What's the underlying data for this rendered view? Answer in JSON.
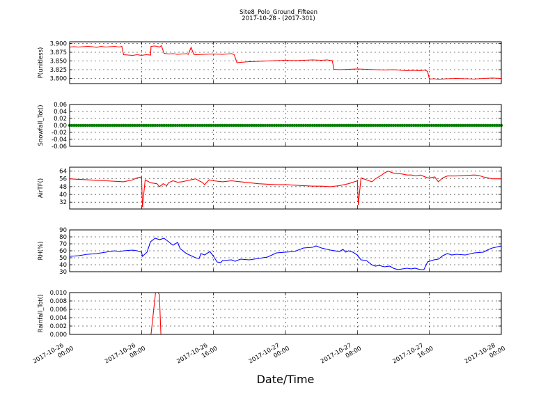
{
  "title": "Site8_Polo_Ground_Fifteen",
  "subtitle": "2017-10-28 - (2017-301)",
  "xlabel": "Date/Time",
  "x_ticks": [
    {
      "l1": "2017-10-26",
      "l2": "00:00"
    },
    {
      "l1": "2017-10-26",
      "l2": "08:00"
    },
    {
      "l1": "2017-10-26",
      "l2": "16:00"
    },
    {
      "l1": "2017-10-27",
      "l2": "00:00"
    },
    {
      "l1": "2017-10-27",
      "l2": "08:00"
    },
    {
      "l1": "2017-10-27",
      "l2": "16:00"
    },
    {
      "l1": "2017-10-28",
      "l2": "00:00"
    }
  ],
  "chart_data": [
    {
      "type": "line",
      "ylabel": "P(unitless)",
      "ylim": [
        3.785,
        3.905
      ],
      "yticks": [
        3.8,
        3.825,
        3.85,
        3.875,
        3.9
      ],
      "tick_decimals": 3,
      "color": "#ff0000",
      "grid": true,
      "x_unit": "hours since 2017-10-26 00:00",
      "xlim": [
        0,
        48
      ],
      "points": [
        [
          0,
          3.89
        ],
        [
          0.5,
          3.891
        ],
        [
          1,
          3.89
        ],
        [
          1.5,
          3.891
        ],
        [
          2,
          3.892
        ],
        [
          2.5,
          3.891
        ],
        [
          3,
          3.889
        ],
        [
          3.5,
          3.892
        ],
        [
          4,
          3.89
        ],
        [
          4.5,
          3.891
        ],
        [
          5,
          3.892
        ],
        [
          5.5,
          3.89
        ],
        [
          5.8,
          3.892
        ],
        [
          6,
          3.868
        ],
        [
          6.5,
          3.867
        ],
        [
          7,
          3.866
        ],
        [
          7.5,
          3.868
        ],
        [
          8,
          3.866
        ],
        [
          8.5,
          3.868
        ],
        [
          9,
          3.867
        ],
        [
          9.05,
          3.892
        ],
        [
          9.5,
          3.893
        ],
        [
          10,
          3.89
        ],
        [
          10.2,
          3.894
        ],
        [
          10.5,
          3.872
        ],
        [
          11,
          3.87
        ],
        [
          11.5,
          3.871
        ],
        [
          12,
          3.869
        ],
        [
          12.5,
          3.87
        ],
        [
          13,
          3.871
        ],
        [
          13.2,
          3.869
        ],
        [
          13.5,
          3.889
        ],
        [
          13.8,
          3.869
        ],
        [
          14,
          3.868
        ],
        [
          15,
          3.869
        ],
        [
          16,
          3.87
        ],
        [
          17,
          3.869
        ],
        [
          18,
          3.871
        ],
        [
          18.3,
          3.868
        ],
        [
          18.6,
          3.845
        ],
        [
          19,
          3.846
        ],
        [
          20,
          3.848
        ],
        [
          21,
          3.849
        ],
        [
          22,
          3.85
        ],
        [
          23,
          3.851
        ],
        [
          24,
          3.852
        ],
        [
          25,
          3.851
        ],
        [
          26,
          3.852
        ],
        [
          27,
          3.853
        ],
        [
          28,
          3.852
        ],
        [
          28.6,
          3.853
        ],
        [
          29.2,
          3.851
        ],
        [
          29.4,
          3.826
        ],
        [
          30,
          3.825
        ],
        [
          31,
          3.826
        ],
        [
          32,
          3.827
        ],
        [
          33,
          3.826
        ],
        [
          34,
          3.825
        ],
        [
          35,
          3.824
        ],
        [
          36,
          3.825
        ],
        [
          37,
          3.823
        ],
        [
          37.5,
          3.822
        ],
        [
          38,
          3.823
        ],
        [
          39,
          3.822
        ],
        [
          39.5,
          3.824
        ],
        [
          39.8,
          3.82
        ],
        [
          40,
          3.798
        ],
        [
          40.5,
          3.799
        ],
        [
          41,
          3.797
        ],
        [
          42,
          3.799
        ],
        [
          43,
          3.8
        ],
        [
          44,
          3.799
        ],
        [
          45,
          3.798
        ],
        [
          46,
          3.8
        ],
        [
          47,
          3.801
        ],
        [
          48,
          3.8
        ]
      ]
    },
    {
      "type": "scatter",
      "ylabel": "Snowfall_Tot()",
      "ylim": [
        -0.06,
        0.06
      ],
      "yticks": [
        -0.06,
        -0.04,
        -0.02,
        0.0,
        0.02,
        0.04,
        0.06
      ],
      "tick_decimals": 2,
      "color": "#008000",
      "grid": true,
      "x_unit": "hours since 2017-10-26 00:00",
      "xlim": [
        0,
        48
      ],
      "constant_value": 0.0,
      "x_step": 0.25
    },
    {
      "type": "line",
      "ylabel": "AirTF()",
      "ylim": [
        25,
        68
      ],
      "yticks": [
        32,
        40,
        48,
        56,
        64
      ],
      "tick_decimals": 0,
      "color": "#ff0000",
      "grid": true,
      "x_unit": "hours since 2017-10-26 00:00",
      "xlim": [
        0,
        48
      ],
      "points": [
        [
          0,
          56
        ],
        [
          1,
          55.5
        ],
        [
          2,
          55
        ],
        [
          3,
          54.5
        ],
        [
          4,
          54
        ],
        [
          5,
          53.5
        ],
        [
          6,
          53
        ],
        [
          7,
          55
        ],
        [
          7.5,
          57
        ],
        [
          8,
          58
        ],
        [
          8.1,
          27
        ],
        [
          8.4,
          55
        ],
        [
          9,
          52
        ],
        [
          9.7,
          51
        ],
        [
          10,
          48
        ],
        [
          10.4,
          51
        ],
        [
          10.8,
          49
        ],
        [
          11,
          52
        ],
        [
          11.5,
          54
        ],
        [
          12,
          52.5
        ],
        [
          12.5,
          53
        ],
        [
          13,
          54
        ],
        [
          13.5,
          55
        ],
        [
          14,
          56
        ],
        [
          14.4,
          54
        ],
        [
          14.8,
          52
        ],
        [
          15,
          50
        ],
        [
          15.5,
          55
        ],
        [
          16,
          54
        ],
        [
          17,
          53
        ],
        [
          18,
          54
        ],
        [
          19,
          53
        ],
        [
          20,
          52
        ],
        [
          21,
          51
        ],
        [
          22,
          50.5
        ],
        [
          23,
          50
        ],
        [
          24,
          50
        ],
        [
          25,
          49.5
        ],
        [
          26,
          49
        ],
        [
          27,
          48.5
        ],
        [
          28,
          48.5
        ],
        [
          29,
          48
        ],
        [
          30,
          49
        ],
        [
          31,
          51
        ],
        [
          32,
          54
        ],
        [
          32.1,
          29
        ],
        [
          32.4,
          57
        ],
        [
          33,
          55
        ],
        [
          33.6,
          53
        ],
        [
          34,
          56
        ],
        [
          34.7,
          60
        ],
        [
          35,
          62
        ],
        [
          35.4,
          64
        ],
        [
          36,
          62
        ],
        [
          37,
          61
        ],
        [
          37.5,
          60
        ],
        [
          38,
          60
        ],
        [
          38.5,
          59
        ],
        [
          39,
          60
        ],
        [
          39.8,
          57
        ],
        [
          40,
          57
        ],
        [
          40.6,
          58
        ],
        [
          41,
          53
        ],
        [
          41.5,
          57
        ],
        [
          42,
          59
        ],
        [
          43,
          59
        ],
        [
          44,
          59.5
        ],
        [
          45,
          60
        ],
        [
          45.5,
          59.5
        ],
        [
          46,
          58
        ],
        [
          47,
          56
        ],
        [
          48,
          56
        ]
      ]
    },
    {
      "type": "line",
      "ylabel": "RH(%)",
      "ylim": [
        30,
        90
      ],
      "yticks": [
        30,
        40,
        50,
        60,
        70,
        80,
        90
      ],
      "tick_decimals": 0,
      "color": "#0000ff",
      "grid": true,
      "x_unit": "hours since 2017-10-26 00:00",
      "xlim": [
        0,
        48
      ],
      "points": [
        [
          0,
          52
        ],
        [
          1,
          53
        ],
        [
          2,
          55
        ],
        [
          3,
          56
        ],
        [
          4,
          58
        ],
        [
          4.5,
          59
        ],
        [
          5,
          60
        ],
        [
          5.5,
          59
        ],
        [
          6,
          60
        ],
        [
          7,
          61
        ],
        [
          7.5,
          60
        ],
        [
          8,
          58
        ],
        [
          8.1,
          52
        ],
        [
          8.6,
          58
        ],
        [
          9,
          73
        ],
        [
          9.5,
          78
        ],
        [
          10,
          76
        ],
        [
          10.5,
          78
        ],
        [
          11,
          73
        ],
        [
          11.5,
          68
        ],
        [
          12,
          72
        ],
        [
          12.3,
          63
        ],
        [
          13,
          56
        ],
        [
          14,
          50
        ],
        [
          14.4,
          49
        ],
        [
          14.6,
          56
        ],
        [
          15,
          54
        ],
        [
          15.6,
          59
        ],
        [
          16,
          52
        ],
        [
          16.4,
          44
        ],
        [
          16.8,
          43
        ],
        [
          17,
          46
        ],
        [
          18,
          47
        ],
        [
          18.4,
          45
        ],
        [
          19,
          48
        ],
        [
          20,
          47
        ],
        [
          21,
          49
        ],
        [
          22,
          51
        ],
        [
          22.5,
          54
        ],
        [
          23,
          57
        ],
        [
          24,
          58
        ],
        [
          25,
          59
        ],
        [
          25.6,
          62
        ],
        [
          26,
          64
        ],
        [
          27,
          65
        ],
        [
          27.4,
          67
        ],
        [
          28,
          64
        ],
        [
          29,
          61
        ],
        [
          30,
          59
        ],
        [
          30.4,
          62
        ],
        [
          30.7,
          58
        ],
        [
          31,
          60
        ],
        [
          31.5,
          58
        ],
        [
          32,
          54
        ],
        [
          32.4,
          47
        ],
        [
          33,
          46
        ],
        [
          33.6,
          40
        ],
        [
          34,
          38
        ],
        [
          34.4,
          39
        ],
        [
          35,
          37
        ],
        [
          35.6,
          38
        ],
        [
          36,
          35
        ],
        [
          36.5,
          33
        ],
        [
          37,
          34
        ],
        [
          37.5,
          35
        ],
        [
          38,
          34
        ],
        [
          38.4,
          35
        ],
        [
          39,
          33
        ],
        [
          39.4,
          33
        ],
        [
          39.8,
          44
        ],
        [
          40.5,
          47
        ],
        [
          41,
          48
        ],
        [
          41.5,
          53
        ],
        [
          42,
          56
        ],
        [
          42.5,
          54
        ],
        [
          43,
          55
        ],
        [
          44,
          54
        ],
        [
          45,
          57
        ],
        [
          46,
          58
        ],
        [
          46.6,
          62
        ],
        [
          47,
          64
        ],
        [
          48,
          67
        ]
      ]
    },
    {
      "type": "line",
      "ylabel": "Rainfall_Tot()",
      "ylim": [
        0,
        0.01
      ],
      "yticks": [
        0.0,
        0.002,
        0.004,
        0.006,
        0.008,
        0.01
      ],
      "tick_decimals": 3,
      "color": "#ff0000",
      "grid": true,
      "x_unit": "hours since 2017-10-26 00:00",
      "xlim": [
        0,
        48
      ],
      "points": [
        [
          0,
          0
        ],
        [
          9.05,
          0
        ],
        [
          9.55,
          0.01
        ],
        [
          9.85,
          0.01
        ],
        [
          9.98,
          0.0095
        ],
        [
          10.15,
          0
        ],
        [
          48,
          0
        ]
      ]
    }
  ]
}
